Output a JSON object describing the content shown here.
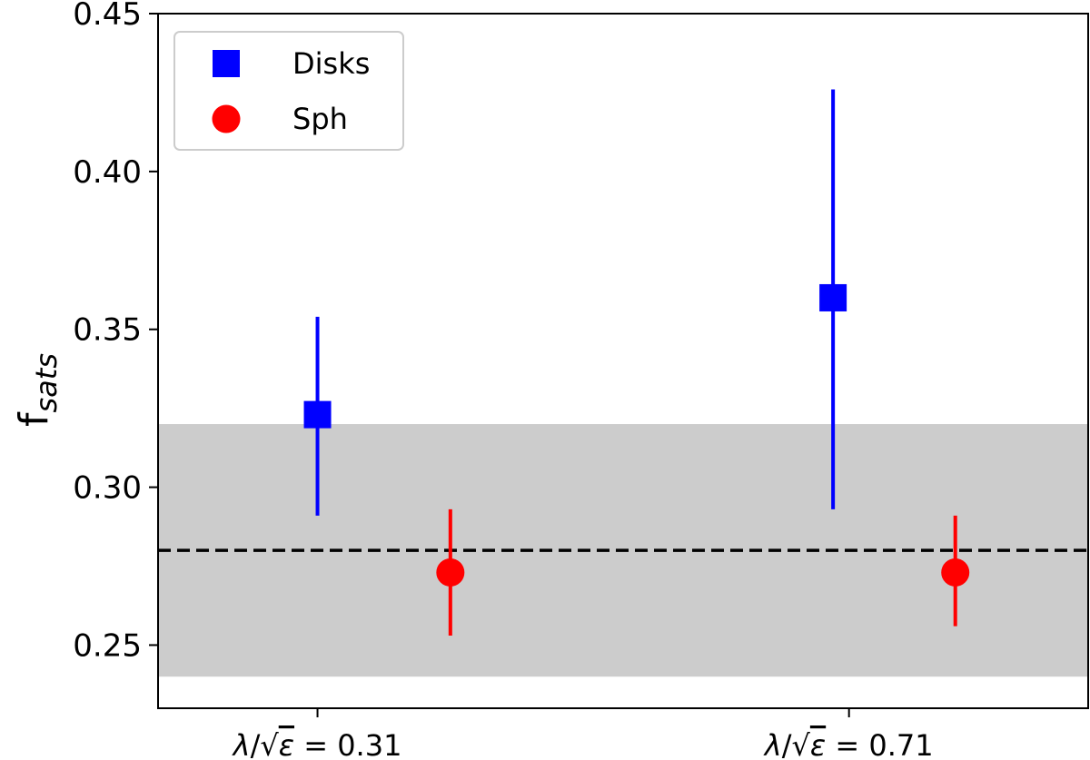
{
  "chart_data": {
    "type": "scatter",
    "ylabel": {
      "main": "f",
      "sub": "sats"
    },
    "ylim": [
      0.23,
      0.45
    ],
    "yticks": [
      "0.25",
      "0.30",
      "0.35",
      "0.40",
      "0.45"
    ],
    "ytick_values": [
      0.25,
      0.3,
      0.35,
      0.4,
      0.45
    ],
    "xticks": [
      {
        "prefix": "λ/√",
        "eps": "ε",
        "value": " = 0.31"
      },
      {
        "prefix": "λ/√",
        "eps": "ε",
        "value": " = 0.71"
      }
    ],
    "xtick_positions": [
      0,
      1
    ],
    "xlim": [
      -0.3,
      1.45
    ],
    "band": {
      "ymin": 0.24,
      "ymax": 0.32,
      "color": "#cccccc"
    },
    "reference_line": {
      "y": 0.28,
      "style": "dashed",
      "color": "#000000"
    },
    "legend": {
      "placement": "top-left"
    },
    "series": [
      {
        "name": "Disks",
        "marker": "square",
        "color": "#0000ff",
        "points": [
          {
            "x": 0.0,
            "y": 0.323,
            "ylow": 0.291,
            "yhigh": 0.354
          },
          {
            "x": 0.97,
            "y": 0.36,
            "ylow": 0.293,
            "yhigh": 0.426
          }
        ]
      },
      {
        "name": "Sph",
        "marker": "circle",
        "color": "#ff0000",
        "points": [
          {
            "x": 0.25,
            "y": 0.273,
            "ylow": 0.253,
            "yhigh": 0.293
          },
          {
            "x": 1.2,
            "y": 0.273,
            "ylow": 0.256,
            "yhigh": 0.291
          }
        ]
      }
    ]
  }
}
